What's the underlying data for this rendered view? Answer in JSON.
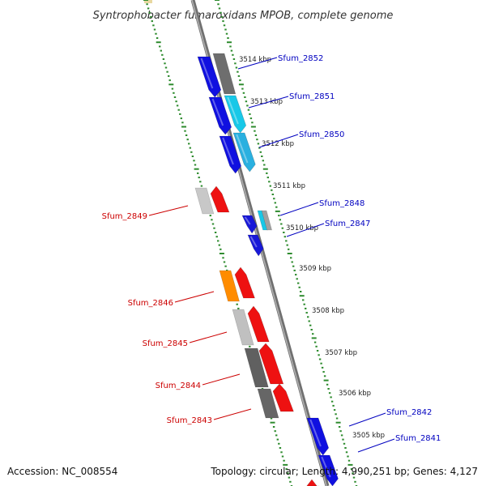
{
  "title": "Syntrophobacter fumaroxidans MPOB, complete genome",
  "footer": {
    "accession": "Accession: NC_008554",
    "stats": "Topology: circular; Length: 4,990,251 bp; Genes: 4,127"
  },
  "colors": {
    "forward_label": "#0000c0",
    "reverse_label": "#cc0000",
    "backbone": "#888888",
    "ruler": "#2e8b2e"
  },
  "kbp_marks": [
    "3514 kbp",
    "3513 kbp",
    "3512 kbp",
    "3511 kbp",
    "3510 kbp",
    "3509 kbp",
    "3508 kbp",
    "3507 kbp",
    "3506 kbp",
    "3505 kbp"
  ],
  "forward_genes": [
    "Sfum_2852",
    "Sfum_2851",
    "Sfum_2850",
    "Sfum_2848",
    "Sfum_2847",
    "Sfum_2842",
    "Sfum_2841"
  ],
  "reverse_genes": [
    "Sfum_2849",
    "Sfum_2846",
    "Sfum_2845",
    "Sfum_2844",
    "Sfum_2843"
  ]
}
